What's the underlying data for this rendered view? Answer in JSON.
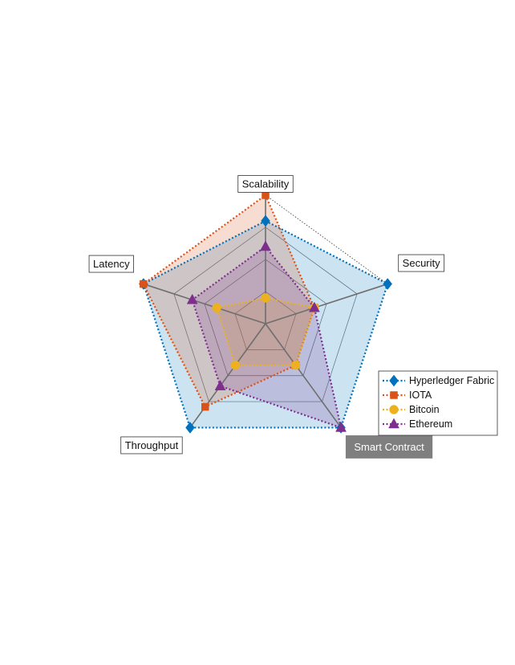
{
  "chart_data": {
    "type": "radar",
    "axes": [
      "Scalability",
      "Security",
      "Smart Contract",
      "Throughput",
      "Latency"
    ],
    "highlighted_axis": "Smart Contract",
    "rlim": [
      0,
      5
    ],
    "rings": 3,
    "series": [
      {
        "name": "Hyperledger Fabric",
        "values": [
          4,
          5,
          5,
          5,
          5
        ],
        "color": "#0072BD",
        "marker": "diamond"
      },
      {
        "name": "IOTA",
        "values": [
          5,
          2,
          2,
          4,
          5
        ],
        "color": "#D95319",
        "marker": "square"
      },
      {
        "name": "Bitcoin",
        "values": [
          1,
          2,
          2,
          2,
          2
        ],
        "color": "#EDB120",
        "marker": "circle"
      },
      {
        "name": "Ethereum",
        "values": [
          3,
          2,
          5,
          3,
          3
        ],
        "color": "#7E2F8E",
        "marker": "triangle"
      }
    ],
    "legend_position": "lower-right"
  }
}
